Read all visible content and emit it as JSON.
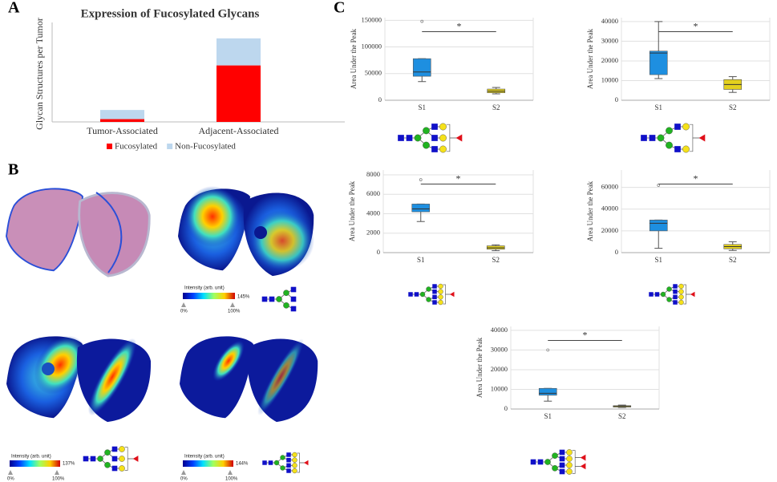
{
  "panel_labels": [
    "A",
    "B",
    "C"
  ],
  "chart_data": [
    {
      "type": "bar",
      "stacked": true,
      "title": "Expression of Fucosylated Glycans",
      "ylabel": "Glycan Structures per Tumor",
      "categories": [
        "Tumor-Associated",
        "Adjacent-Associated"
      ],
      "series": [
        {
          "name": "Fucosylated",
          "color": "#ff0000",
          "values": [
            0.7,
            14.2
          ]
        },
        {
          "name": "Non-Fucosylated",
          "color": "#bdd7ee",
          "values": [
            2.3,
            6.8
          ]
        }
      ],
      "ylim": [
        0,
        25
      ],
      "legend": "bottom"
    },
    {
      "type": "box",
      "ylabel": "Area Under the Peak",
      "categories": [
        "S1",
        "S2"
      ],
      "annotation": "*",
      "boxes": [
        {
          "color": "#1e8fe0",
          "min": 35000,
          "q1": 45000,
          "median": 53000,
          "q3": 78000,
          "max": 78000,
          "outliers": [
            148000
          ]
        },
        {
          "color": "#e3d01e",
          "min": 12000,
          "q1": 14000,
          "median": 17000,
          "q3": 21000,
          "max": 24000,
          "outliers": []
        }
      ],
      "ylim": [
        0,
        155000
      ],
      "yticks": [
        0,
        50000,
        100000,
        150000
      ],
      "grid": true
    },
    {
      "type": "box",
      "ylabel": "Area Under the Peak",
      "categories": [
        "S1",
        "S2"
      ],
      "annotation": "*",
      "boxes": [
        {
          "color": "#1e8fe0",
          "min": 11000,
          "q1": 13000,
          "median": 24000,
          "q3": 25000,
          "max": 40000,
          "outliers": []
        },
        {
          "color": "#e3d01e",
          "min": 4000,
          "q1": 5500,
          "median": 8000,
          "q3": 10500,
          "max": 12000,
          "outliers": []
        }
      ],
      "ylim": [
        0,
        42000
      ],
      "yticks": [
        0,
        10000,
        20000,
        30000,
        40000
      ],
      "grid": true
    },
    {
      "type": "box",
      "ylabel": "Area Under the Peak",
      "categories": [
        "S1",
        "S2"
      ],
      "annotation": "*",
      "boxes": [
        {
          "color": "#1e8fe0",
          "min": 3200,
          "q1": 4200,
          "median": 4500,
          "q3": 5000,
          "max": 5000,
          "outliers": [
            7500
          ]
        },
        {
          "color": "#e3d01e",
          "min": 200,
          "q1": 350,
          "median": 500,
          "q3": 700,
          "max": 800,
          "outliers": []
        }
      ],
      "ylim": [
        0,
        8500
      ],
      "yticks": [
        0,
        2000,
        4000,
        6000,
        8000
      ],
      "grid": true
    },
    {
      "type": "box",
      "ylabel": "Area Under the Peak",
      "categories": [
        "S1",
        "S2"
      ],
      "annotation": "*",
      "boxes": [
        {
          "color": "#1e8fe0",
          "min": 4000,
          "q1": 20000,
          "median": 27000,
          "q3": 30000,
          "max": 30000,
          "outliers": [
            62000
          ]
        },
        {
          "color": "#e3d01e",
          "min": 2000,
          "q1": 3500,
          "median": 5500,
          "q3": 7500,
          "max": 10000,
          "outliers": []
        }
      ],
      "ylim": [
        0,
        76000
      ],
      "yticks": [
        0,
        20000,
        40000,
        60000
      ],
      "grid": true
    },
    {
      "type": "box",
      "ylabel": "Area Under the Peak",
      "categories": [
        "S1",
        "S2"
      ],
      "annotation": "*",
      "boxes": [
        {
          "color": "#1e8fe0",
          "min": 4000,
          "q1": 7000,
          "median": 8000,
          "q3": 10500,
          "max": 10500,
          "outliers": [
            30000
          ]
        },
        {
          "color": "#e3d01e",
          "min": 800,
          "q1": 1000,
          "median": 1300,
          "q3": 1700,
          "max": 2000,
          "outliers": []
        }
      ],
      "ylim": [
        0,
        42000
      ],
      "yticks": [
        0,
        10000,
        20000,
        30000,
        40000
      ],
      "grid": true
    }
  ],
  "colorbars": [
    {
      "title": "Intensity (arb. unit)",
      "min_label": "0%",
      "ref_label": "100%",
      "max_label": "145%"
    },
    {
      "title": "Intensity (arb. unit)",
      "min_label": "0%",
      "ref_label": "100%",
      "max_label": "137%"
    },
    {
      "title": "Intensity (arb. unit)",
      "min_label": "0%",
      "ref_label": "100%",
      "max_label": "144%"
    }
  ]
}
